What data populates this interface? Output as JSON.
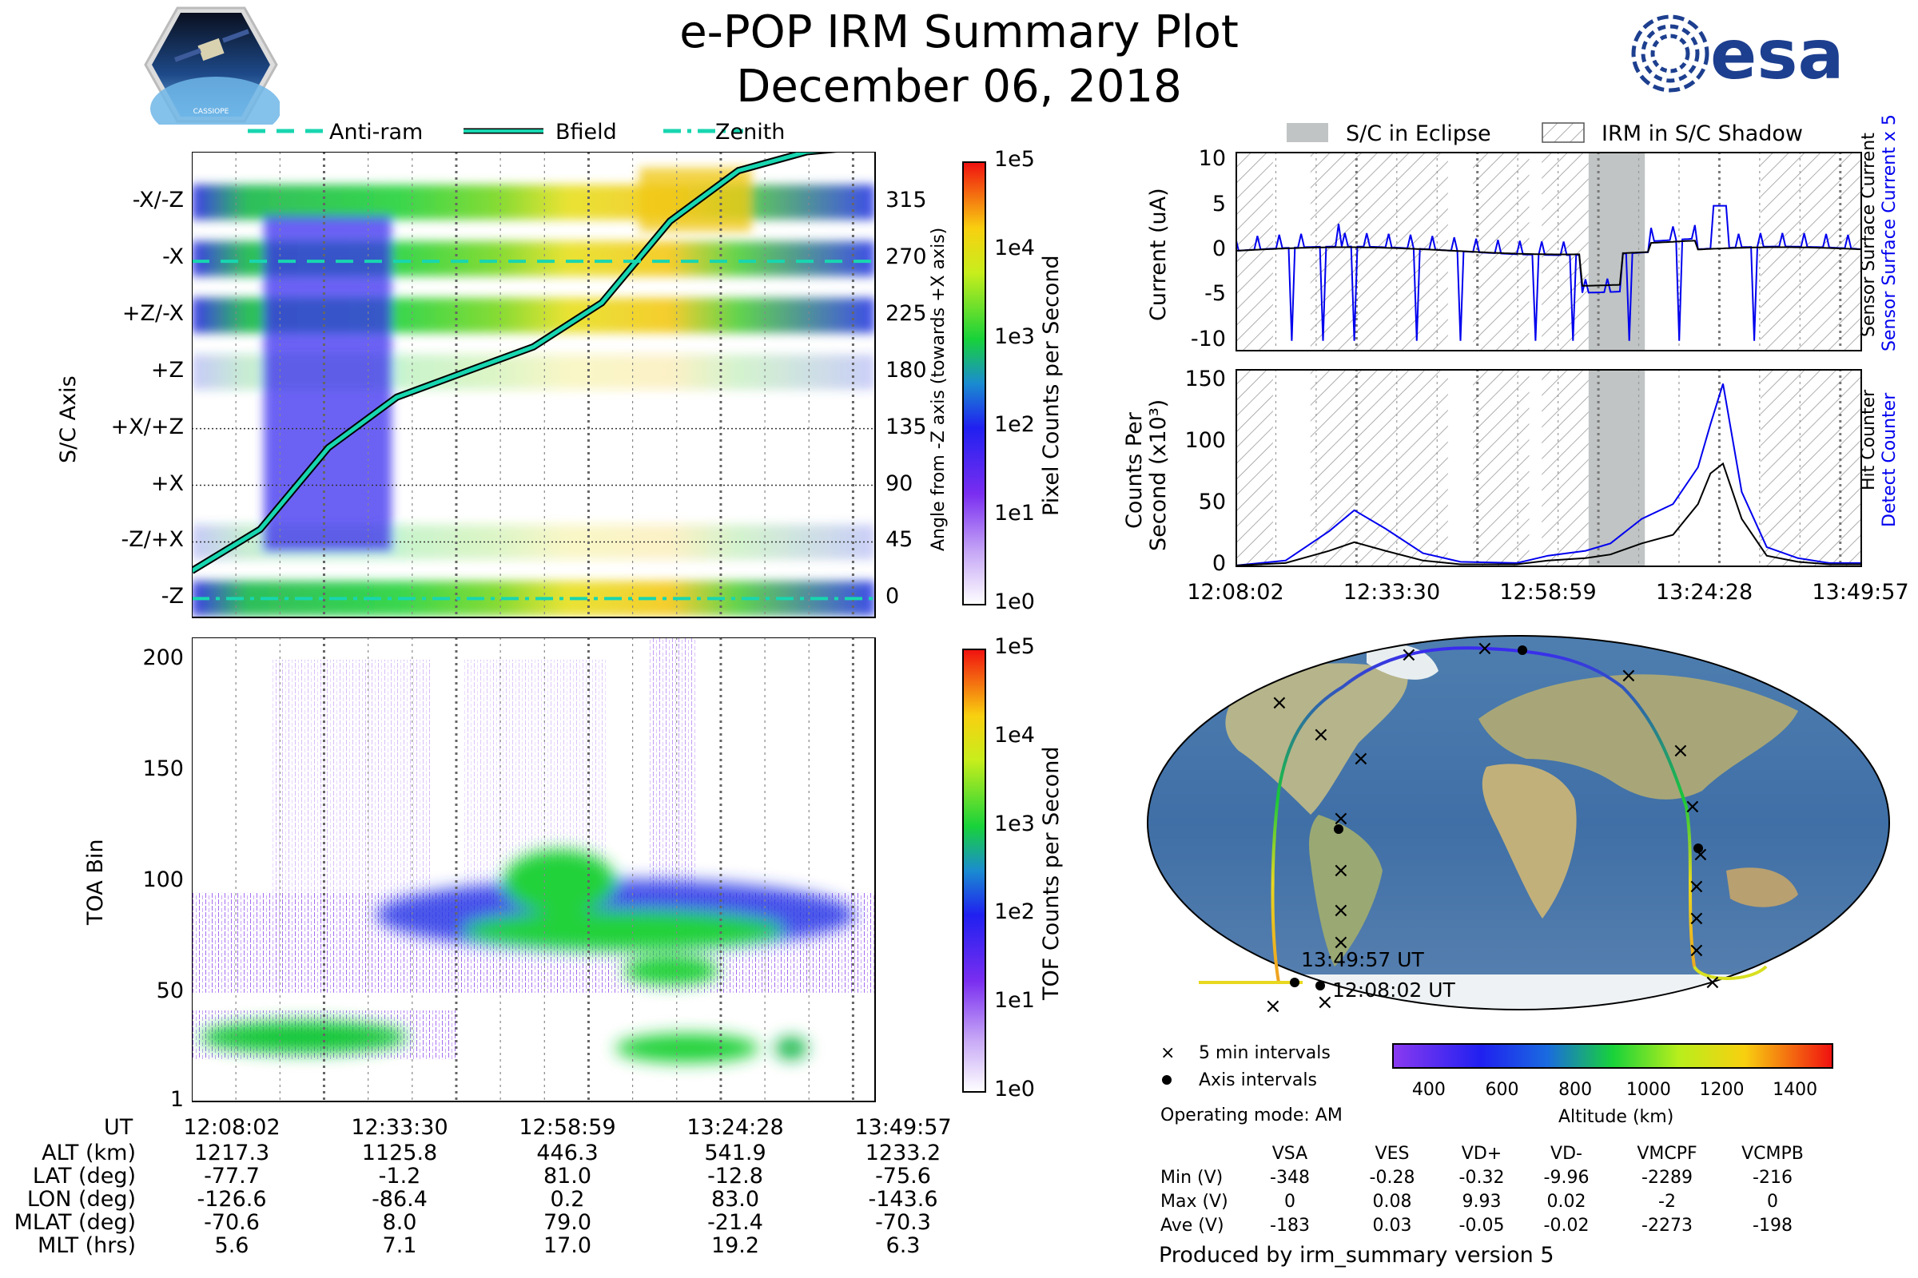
{
  "header": {
    "title": "e-POP IRM Summary Plot",
    "date": "December 06, 2018",
    "logo_left_text": "CASSIOPE",
    "logo_right_text": "esa"
  },
  "top_legend": [
    "Anti-ram",
    "Bfield",
    "Zenith"
  ],
  "right_legend": [
    "S/C in Eclipse",
    "IRM in S/C Shadow"
  ],
  "colors": {
    "anti_ram": "#18d6b0",
    "bfield": "#18d6b0",
    "zenith": "#18d6b0",
    "current_blue": "#0000ee",
    "eclipse": "#c0c4c4"
  },
  "chart_data": [
    {
      "type": "heatmap",
      "name": "sc-axis-pixel-counts",
      "ylabel": "S/C Axis",
      "ytick_labels": [
        "-X/-Z",
        "-X",
        "+Z/-X",
        "+Z",
        "+X/+Z",
        "+X",
        "-Z/+X",
        "-Z"
      ],
      "y2label": "Angle from -Z axis (towards +X axis)",
      "y2_ticks": [
        315,
        270,
        225,
        180,
        135,
        90,
        45,
        0
      ],
      "colorbar_label": "Pixel Counts per Second",
      "colorbar_ticks": [
        "1e5",
        "1e4",
        "1e3",
        "1e2",
        "1e1",
        "1e0"
      ],
      "series": [
        {
          "name": "Bfield",
          "t": [
            0,
            0.1,
            0.2,
            0.3,
            0.4,
            0.5,
            0.6,
            0.7,
            0.8,
            0.9,
            1.0
          ],
          "angle": [
            22,
            55,
            120,
            160,
            180,
            200,
            235,
            300,
            340,
            355,
            360
          ]
        },
        {
          "name": "Anti-ram",
          "t": [
            0,
            1
          ],
          "angle": [
            268,
            268
          ]
        },
        {
          "name": "Zenith",
          "t": [
            0,
            1
          ],
          "angle": [
            0,
            0
          ]
        }
      ]
    },
    {
      "type": "heatmap",
      "name": "toa-tof-counts",
      "ylabel": "TOA Bin",
      "yticks": [
        1,
        50,
        100,
        150,
        200
      ],
      "ylim": [
        1,
        210
      ],
      "colorbar_label": "TOF Counts per Second",
      "colorbar_ticks": [
        "1e5",
        "1e4",
        "1e3",
        "1e2",
        "1e1",
        "1e0"
      ]
    },
    {
      "type": "line",
      "name": "current",
      "ylabel": "Current (uA)",
      "yticks": [
        10,
        5,
        0,
        -5,
        -10
      ],
      "ylim": [
        -11,
        11
      ],
      "right_labels": [
        "Sensor Surface Current x 5",
        "Sensor Surface Current"
      ],
      "eclipse_range": [
        0.565,
        0.655
      ]
    },
    {
      "type": "line",
      "name": "counts",
      "ylabel": "Counts Per Second (x10³)",
      "ylabel_lines": [
        "Counts Per",
        "Second (x10³)"
      ],
      "yticks": [
        150,
        100,
        50,
        0
      ],
      "ylim": [
        0,
        160
      ],
      "right_labels": [
        "Detect Counter",
        "Hit Counter"
      ],
      "eclipse_range": [
        0.565,
        0.655
      ],
      "series": [
        {
          "name": "Detect Counter",
          "t": [
            0,
            0.08,
            0.15,
            0.19,
            0.24,
            0.3,
            0.36,
            0.45,
            0.5,
            0.56,
            0.6,
            0.65,
            0.7,
            0.74,
            0.76,
            0.78,
            0.81,
            0.85,
            0.9,
            0.95,
            1.0
          ],
          "v": [
            0,
            4,
            28,
            45,
            30,
            10,
            3,
            2,
            8,
            12,
            18,
            38,
            50,
            80,
            115,
            148,
            60,
            15,
            6,
            2,
            2
          ]
        },
        {
          "name": "Hit Counter",
          "t": [
            0,
            0.08,
            0.15,
            0.19,
            0.24,
            0.3,
            0.36,
            0.45,
            0.5,
            0.56,
            0.6,
            0.65,
            0.7,
            0.74,
            0.76,
            0.78,
            0.81,
            0.85,
            0.9,
            0.95,
            1.0
          ],
          "v": [
            0,
            2,
            12,
            19,
            12,
            4,
            1,
            1,
            4,
            6,
            9,
            18,
            25,
            50,
            75,
            83,
            38,
            8,
            3,
            1,
            1
          ]
        }
      ]
    }
  ],
  "time_axis": {
    "label": "UT",
    "ticks": [
      "12:08:02",
      "12:33:30",
      "12:58:59",
      "13:24:28",
      "13:49:57"
    ]
  },
  "ephemeris": {
    "rows": [
      {
        "label": "ALT (km)",
        "values": [
          "1217.3",
          "1125.8",
          "446.3",
          "541.9",
          "1233.2"
        ]
      },
      {
        "label": "LAT (deg)",
        "values": [
          "-77.7",
          "-1.2",
          "81.0",
          "-12.8",
          "-75.6"
        ]
      },
      {
        "label": "LON (deg)",
        "values": [
          "-126.6",
          "-86.4",
          "0.2",
          "83.0",
          "-143.6"
        ]
      },
      {
        "label": "MLAT (deg)",
        "values": [
          "-70.6",
          "8.0",
          "79.0",
          "-21.4",
          "-70.3"
        ]
      },
      {
        "label": "MLT (hrs)",
        "values": [
          "5.6",
          "7.1",
          "17.0",
          "19.2",
          "6.3"
        ]
      }
    ]
  },
  "map": {
    "end_label": "13:49:57 UT",
    "start_label": "12:08:02 UT",
    "legend_5min": "5 min intervals",
    "legend_axis": "Axis intervals",
    "operating_mode": "Operating mode: AM",
    "altitude_label": "Altitude (km)",
    "altitude_ticks": [
      "400",
      "600",
      "800",
      "1000",
      "1200",
      "1400"
    ]
  },
  "voltages": {
    "columns": [
      "VSA",
      "VES",
      "VD+",
      "VD-",
      "VMCPF",
      "VCMPB"
    ],
    "rows": [
      {
        "label": "Min (V)",
        "values": [
          "-348",
          "-0.28",
          "-0.32",
          "-9.96",
          "-2289",
          "-216"
        ]
      },
      {
        "label": "Max (V)",
        "values": [
          "0",
          "0.08",
          "9.93",
          "0.02",
          "-2",
          "0"
        ]
      },
      {
        "label": "Ave (V)",
        "values": [
          "-183",
          "0.03",
          "-0.05",
          "-0.02",
          "-2273",
          "-198"
        ]
      }
    ]
  },
  "footer": "Produced by irm_summary version 5"
}
